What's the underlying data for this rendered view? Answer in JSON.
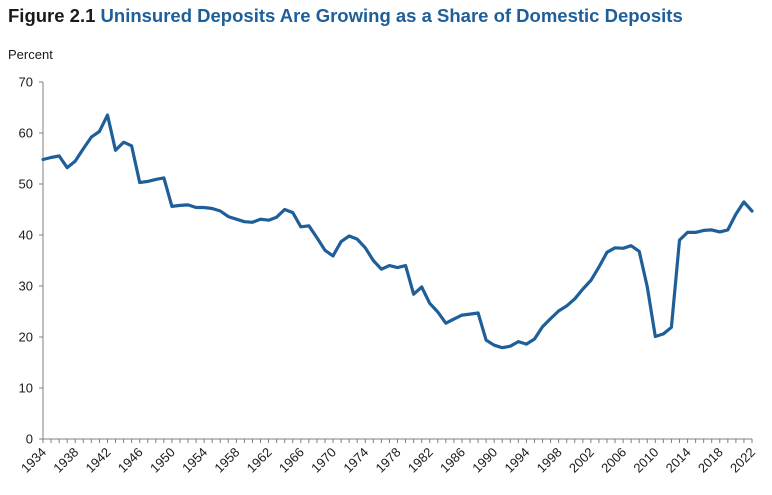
{
  "figure": {
    "number": "Figure 2.1",
    "title": "Uninsured Deposits Are Growing as a Share of Domestic Deposits"
  },
  "chart_data": {
    "type": "line",
    "title": "Uninsured Deposits Are Growing as a Share of Domestic Deposits",
    "ylabel": "Percent",
    "xlabel": "",
    "ylim": [
      0,
      70
    ],
    "xlim": [
      1934,
      2022
    ],
    "yticks": [
      0,
      10,
      20,
      30,
      40,
      50,
      60,
      70
    ],
    "xticks": [
      1934,
      1938,
      1942,
      1946,
      1950,
      1954,
      1958,
      1962,
      1966,
      1970,
      1974,
      1978,
      1982,
      1986,
      1990,
      1994,
      1998,
      2002,
      2006,
      2010,
      2014,
      2018,
      2022
    ],
    "grid": false,
    "legend": "none",
    "line_color": "#1e5f99",
    "series": [
      {
        "x": [
          1934,
          1935,
          1936,
          1937,
          1938,
          1939,
          1940,
          1941,
          1942,
          1943,
          1944,
          1945,
          1946,
          1947,
          1948,
          1949,
          1950,
          1951,
          1952,
          1953,
          1954,
          1955,
          1956,
          1957,
          1958,
          1959,
          1960,
          1961,
          1962,
          1963,
          1964,
          1965,
          1966,
          1967,
          1968,
          1969,
          1970,
          1971,
          1972,
          1973,
          1974,
          1975,
          1976,
          1977,
          1978,
          1979,
          1980,
          1981,
          1982,
          1983,
          1984,
          1985,
          1986,
          1987,
          1988,
          1989,
          1990,
          1991,
          1992,
          1993,
          1994,
          1995,
          1996,
          1997,
          1998,
          1999,
          2000,
          2001,
          2002,
          2003,
          2004,
          2005,
          2006,
          2007,
          2008,
          2009,
          2010,
          2011,
          2012,
          2013,
          2014,
          2015,
          2016,
          2017,
          2018,
          2019,
          2020,
          2021,
          2022
        ],
        "values": [
          54.8,
          55.2,
          55.5,
          53.2,
          54.5,
          56.9,
          59.2,
          60.3,
          63.5,
          56.6,
          58.2,
          57.5,
          50.3,
          50.5,
          50.9,
          51.2,
          45.6,
          45.8,
          45.9,
          45.4,
          45.4,
          45.2,
          44.7,
          43.6,
          43.1,
          42.6,
          42.5,
          43.1,
          42.9,
          43.5,
          45.0,
          44.4,
          41.6,
          41.8,
          39.5,
          37.0,
          35.9,
          38.7,
          39.8,
          39.2,
          37.5,
          35.0,
          33.3,
          34.0,
          33.6,
          34.0,
          28.4,
          29.8,
          26.6,
          24.9,
          22.7,
          23.5,
          24.3,
          24.5,
          24.7,
          19.4,
          18.4,
          17.9,
          18.2,
          19.1,
          18.6,
          19.6,
          22.0,
          23.6,
          25.1,
          26.1,
          27.5,
          29.4,
          31.1,
          33.7,
          36.6,
          37.5,
          37.4,
          37.9,
          36.8,
          29.8,
          20.1,
          20.6,
          21.9,
          39.0,
          40.5,
          40.5,
          40.9,
          41.0,
          40.6,
          41.0,
          44.1,
          46.5,
          44.7
        ]
      }
    ]
  }
}
